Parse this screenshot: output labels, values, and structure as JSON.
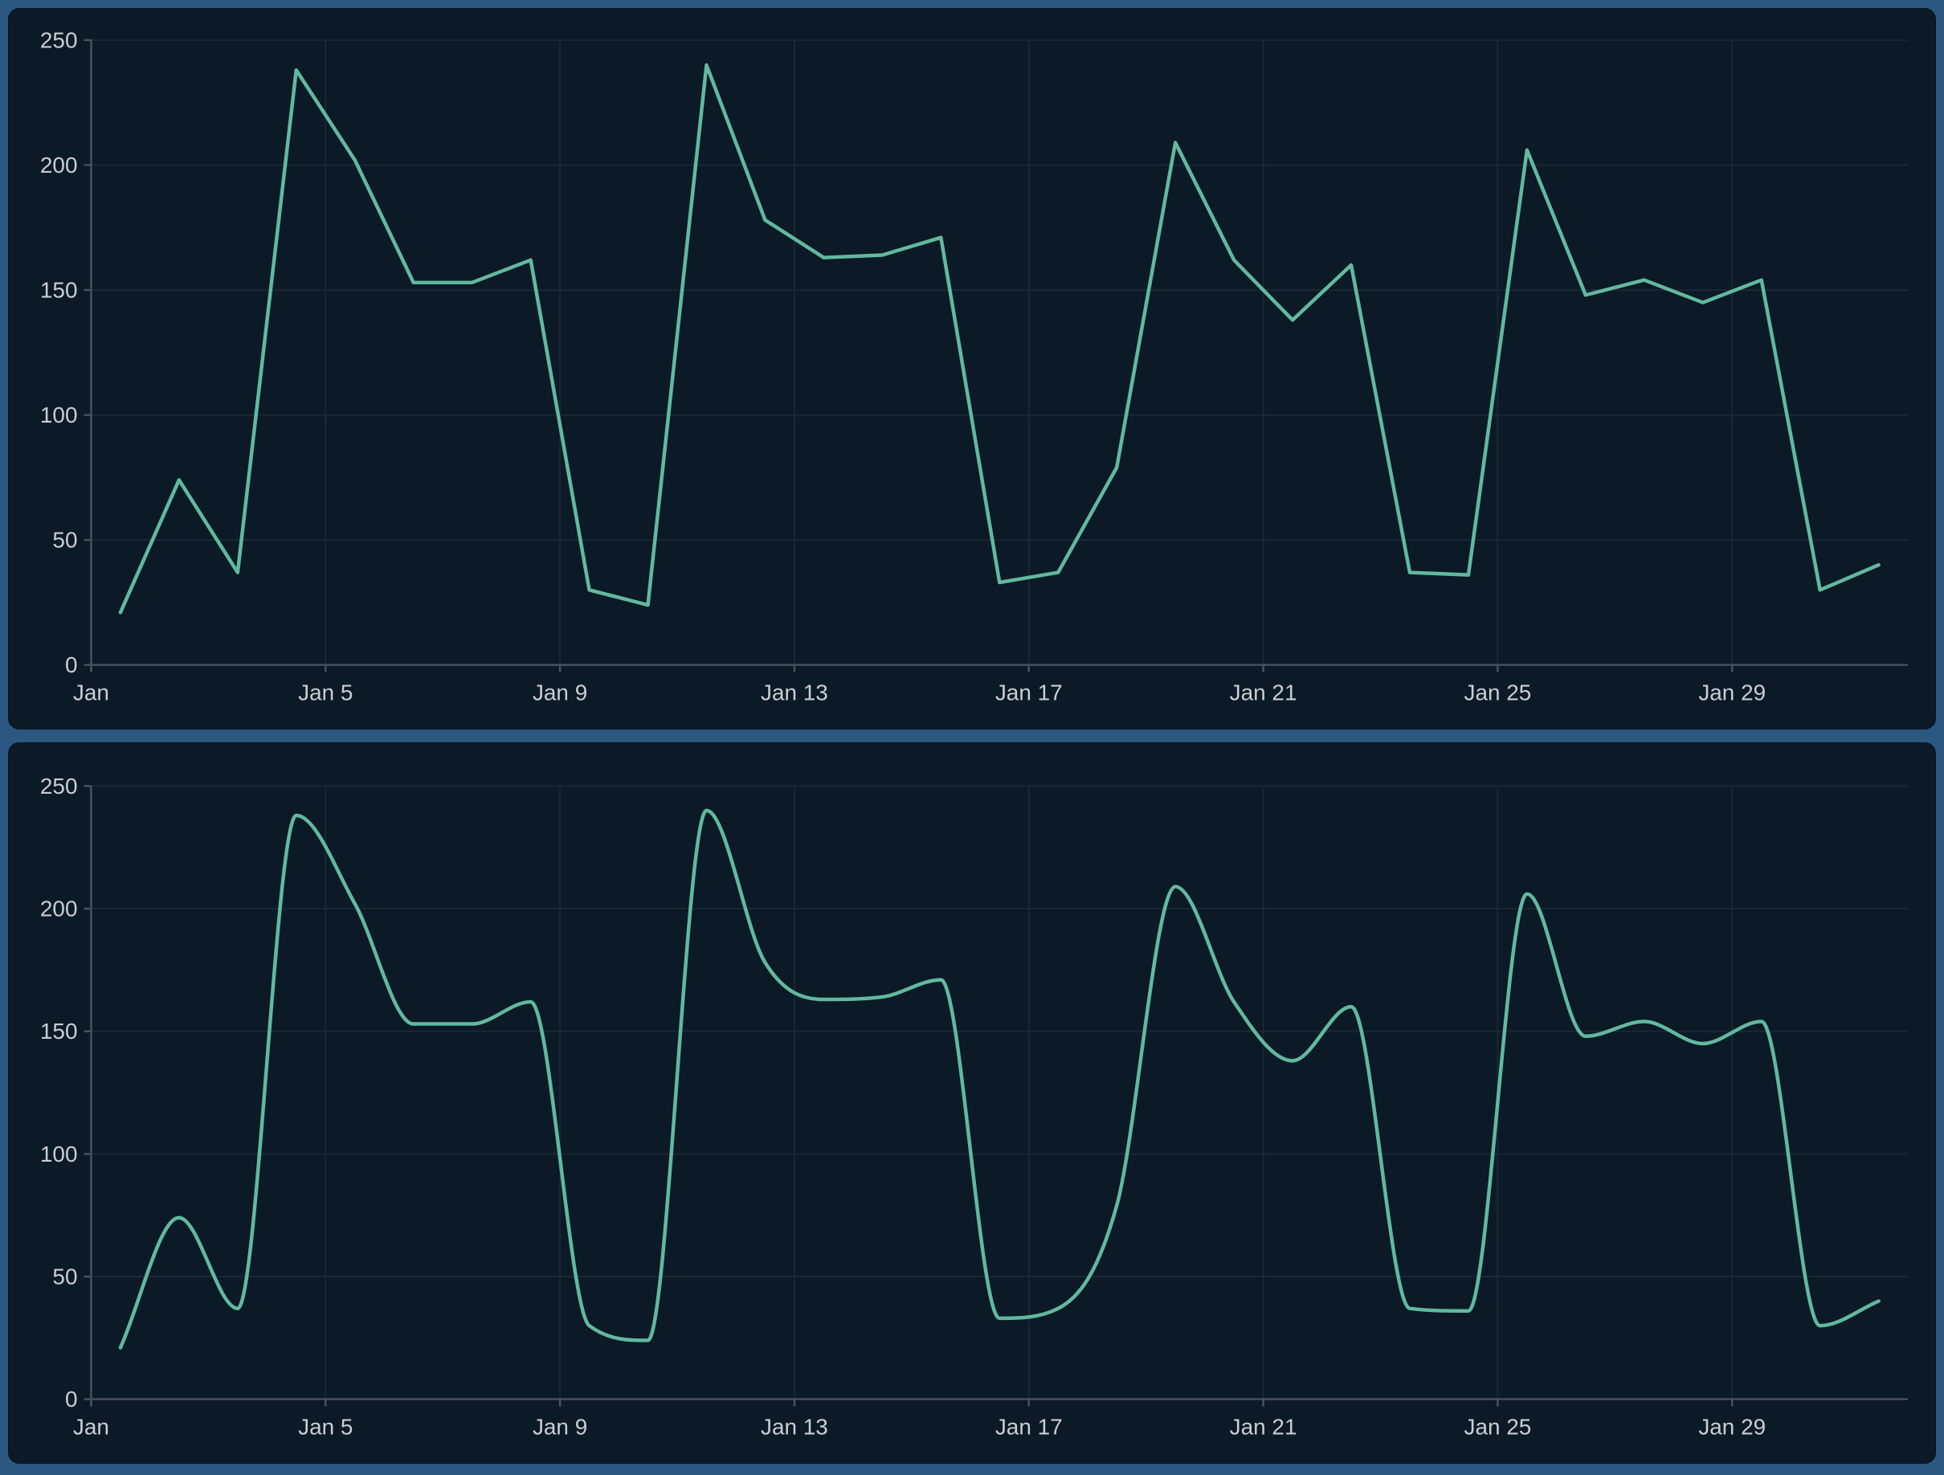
{
  "colors": {
    "outer_background": "#2b5781",
    "panel_background": "#0b1a26",
    "grid_line": "#1a2734",
    "axis_line": "#46525e",
    "tick_label": "#c8ced4",
    "series_line": "#61b9a0"
  },
  "y_axis": {
    "min": 0,
    "max": 250,
    "tick_interval": 50,
    "tick_labels": [
      "0",
      "50",
      "100",
      "150",
      "200",
      "250"
    ]
  },
  "x_axis": {
    "tick_labels": [
      "Jan",
      "Jan 5",
      "Jan 9",
      "Jan 13",
      "Jan 17",
      "Jan 21",
      "Jan 25",
      "Jan 29"
    ],
    "tick_day_indices": [
      0,
      4,
      8,
      12,
      16,
      20,
      24,
      28
    ]
  },
  "chart_data": [
    {
      "type": "line",
      "title": "",
      "xlabel": "",
      "ylabel": "",
      "interpolation": "linear",
      "legend": null,
      "grid": true,
      "ylim": [
        0,
        250
      ],
      "yticks": [
        0,
        50,
        100,
        150,
        200,
        250
      ],
      "xtick_labels": [
        "Jan",
        "Jan 5",
        "Jan 9",
        "Jan 13",
        "Jan 17",
        "Jan 21",
        "Jan 25",
        "Jan 29"
      ],
      "xtick_day_indices": [
        0,
        4,
        8,
        12,
        16,
        20,
        24,
        28
      ],
      "x": [
        "Jan 1",
        "Jan 2",
        "Jan 3",
        "Jan 4",
        "Jan 5",
        "Jan 6",
        "Jan 7",
        "Jan 8",
        "Jan 9",
        "Jan 10",
        "Jan 11",
        "Jan 12",
        "Jan 13",
        "Jan 14",
        "Jan 15",
        "Jan 16",
        "Jan 17",
        "Jan 18",
        "Jan 19",
        "Jan 20",
        "Jan 21",
        "Jan 22",
        "Jan 23",
        "Jan 24",
        "Jan 25",
        "Jan 26",
        "Jan 27",
        "Jan 28",
        "Jan 29",
        "Jan 30",
        "Jan 31"
      ],
      "values": [
        21,
        74,
        37,
        238,
        202,
        153,
        153,
        162,
        30,
        24,
        240,
        178,
        163,
        164,
        171,
        33,
        37,
        79,
        209,
        162,
        138,
        160,
        37,
        36,
        206,
        148,
        154,
        145,
        154,
        30,
        40
      ],
      "line_color": "#61b9a0"
    },
    {
      "type": "line",
      "title": "",
      "xlabel": "",
      "ylabel": "",
      "interpolation": "smooth",
      "legend": null,
      "grid": true,
      "ylim": [
        0,
        250
      ],
      "yticks": [
        0,
        50,
        100,
        150,
        200,
        250
      ],
      "xtick_labels": [
        "Jan",
        "Jan 5",
        "Jan 9",
        "Jan 13",
        "Jan 17",
        "Jan 21",
        "Jan 25",
        "Jan 29"
      ],
      "xtick_day_indices": [
        0,
        4,
        8,
        12,
        16,
        20,
        24,
        28
      ],
      "x": [
        "Jan 1",
        "Jan 2",
        "Jan 3",
        "Jan 4",
        "Jan 5",
        "Jan 6",
        "Jan 7",
        "Jan 8",
        "Jan 9",
        "Jan 10",
        "Jan 11",
        "Jan 12",
        "Jan 13",
        "Jan 14",
        "Jan 15",
        "Jan 16",
        "Jan 17",
        "Jan 18",
        "Jan 19",
        "Jan 20",
        "Jan 21",
        "Jan 22",
        "Jan 23",
        "Jan 24",
        "Jan 25",
        "Jan 26",
        "Jan 27",
        "Jan 28",
        "Jan 29",
        "Jan 30",
        "Jan 31"
      ],
      "values": [
        21,
        74,
        37,
        238,
        202,
        153,
        153,
        162,
        30,
        24,
        240,
        178,
        163,
        164,
        171,
        33,
        37,
        79,
        209,
        162,
        138,
        160,
        37,
        36,
        206,
        148,
        154,
        145,
        154,
        30,
        40
      ],
      "line_color": "#61b9a0"
    }
  ]
}
